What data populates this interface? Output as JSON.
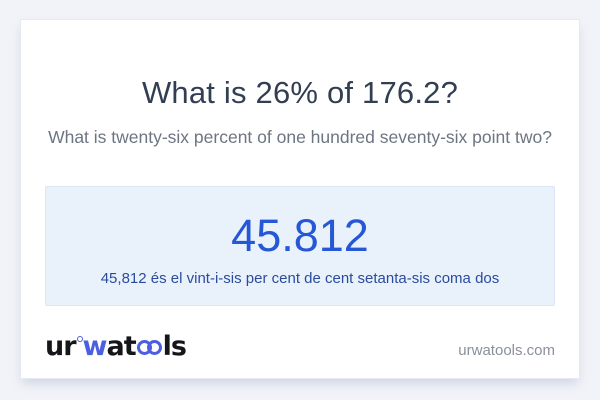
{
  "card": {
    "title": "What is 26% of 176.2?",
    "subtitle": "What is twenty-six percent of one hundred seventy-six point two?",
    "answer": {
      "value": "45.812",
      "sentence": "45,812 és el vint-i-sis per cent de cent setanta-sis coma dos"
    },
    "footer": {
      "logo": {
        "seg1": "ur",
        "seg2": "w",
        "seg3": "at",
        "seg4": "ls"
      },
      "site_url": "urwatools.com"
    }
  },
  "colors": {
    "page_bg": "#f1f3f8",
    "card_bg": "#ffffff",
    "title_text": "#323e52",
    "subtitle_text": "#6d7582",
    "answer_box_bg": "#e9f1fb",
    "answer_box_border": "#dbe7f6",
    "answer_value_text": "#2557d6",
    "answer_sentence_text": "#2b4c9d",
    "logo_dark": "#14161a",
    "logo_accent_blue": "#4b5fe0",
    "site_url_text": "#8a909b"
  }
}
